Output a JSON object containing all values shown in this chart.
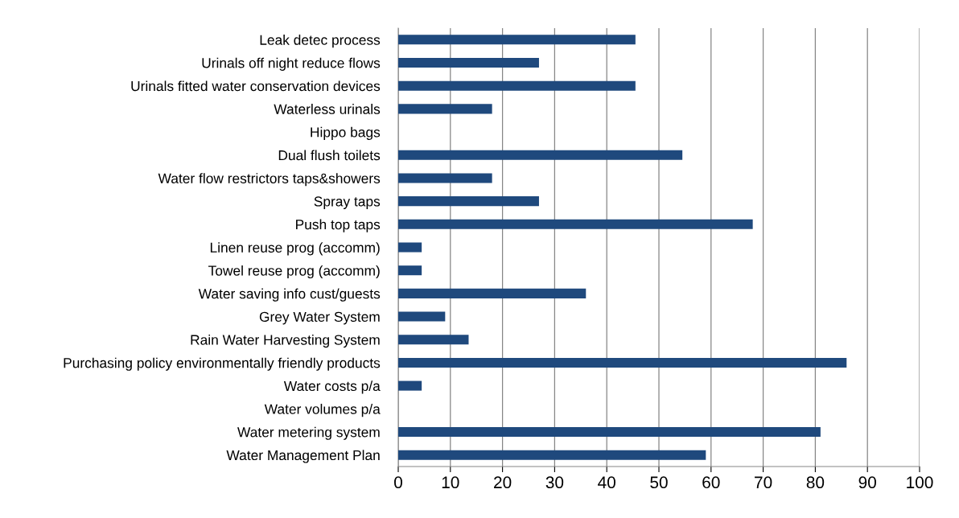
{
  "chart_data": {
    "type": "bar",
    "orientation": "horizontal",
    "categories": [
      "Leak detec process",
      "Urinals off night reduce flows",
      "Urinals fitted water conservation devices",
      "Waterless urinals",
      "Hippo bags",
      "Dual flush toilets",
      "Water flow restrictors taps&showers",
      "Spray taps",
      "Push top taps",
      "Linen reuse prog (accomm)",
      "Towel reuse prog (accomm)",
      "Water saving info cust/guests",
      "Grey Water System",
      "Rain Water Harvesting System",
      "Purchasing policy environmentally friendly products",
      "Water costs p/a",
      "Water volumes p/a",
      "Water metering system",
      "Water Management Plan"
    ],
    "values": [
      45.5,
      27,
      45.5,
      18,
      0,
      54.5,
      18,
      27,
      68,
      4.5,
      4.5,
      36,
      9,
      13.5,
      86,
      4.5,
      0,
      81,
      59
    ],
    "color": "#1f497d",
    "xlim": [
      0,
      100
    ],
    "xticks": [
      0,
      10,
      20,
      30,
      40,
      50,
      60,
      70,
      80,
      90,
      100
    ],
    "grid": "x",
    "legend": false
  }
}
